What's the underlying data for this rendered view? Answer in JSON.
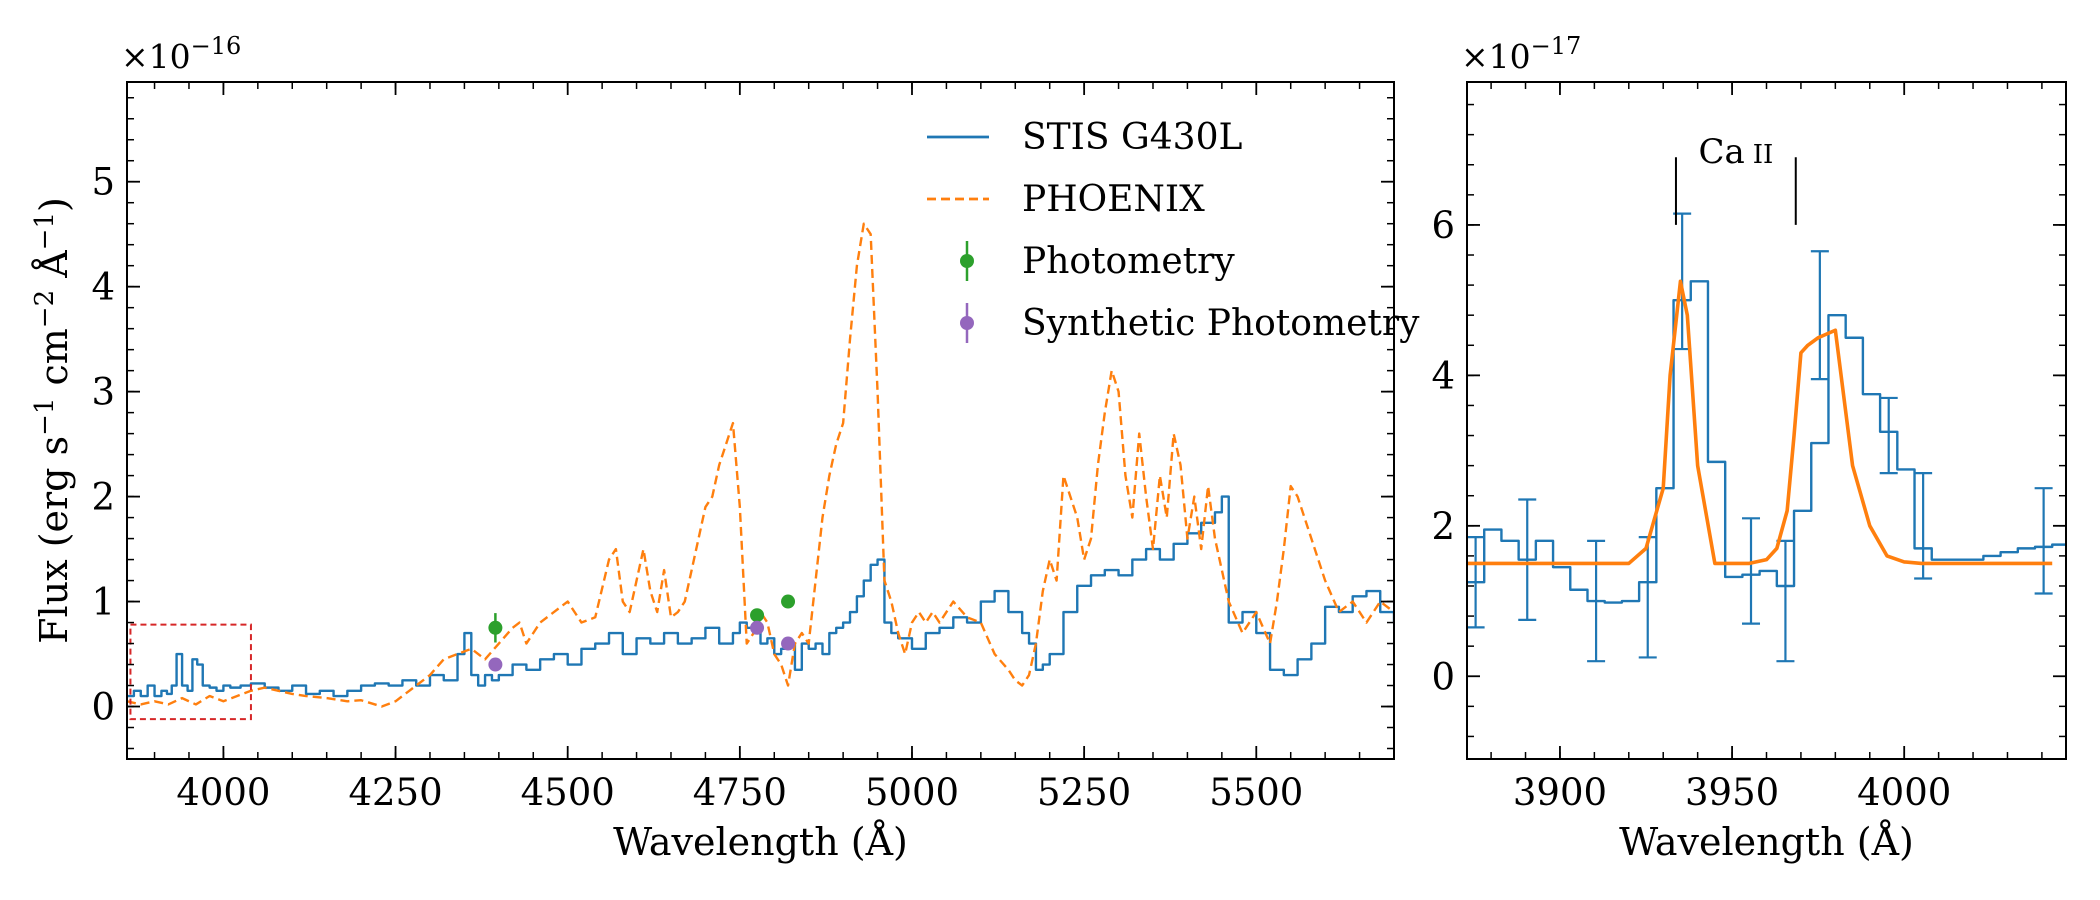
{
  "chart_data": [
    {
      "type": "line",
      "xlabel": "Wavelength (Å)",
      "ylabel_parts": [
        "Flux (erg s",
        "−1",
        " cm",
        "−2",
        " Å",
        "−1",
        ")"
      ],
      "y_scale_text": {
        "prefix": "×10",
        "exp": "−16"
      },
      "xlim": [
        3860,
        5700
      ],
      "ylim": [
        -0.5,
        5.95
      ],
      "xticks": [
        4000,
        4250,
        4500,
        4750,
        5000,
        5250,
        5500
      ],
      "xtick_labels": [
        "4000",
        "4250",
        "4500",
        "4750",
        "5000",
        "5250",
        "5500"
      ],
      "yticks": [
        0,
        1,
        2,
        3,
        4,
        5
      ],
      "ytick_labels": [
        "0",
        "1",
        "2",
        "3",
        "4",
        "5"
      ],
      "zoom_box": {
        "x": [
          3865,
          4040
        ],
        "y": [
          -0.12,
          0.78
        ],
        "color": "#d62728"
      },
      "legend": {
        "placement": "top-right",
        "entries": [
          {
            "label": "STIS G430L",
            "style": "line",
            "color": "#1f77b4"
          },
          {
            "label": "PHOENIX",
            "style": "dashed",
            "color": "#ff7f0e"
          },
          {
            "label": "Photometry",
            "style": "errorbar",
            "color": "#2ca02c"
          },
          {
            "label": "Synthetic Photometry",
            "style": "errorbar",
            "color": "#9467bd"
          }
        ]
      },
      "series": [
        {
          "name": "STIS G430L",
          "color": "#1f77b4",
          "style": "step",
          "x": [
            3860,
            3870,
            3880,
            3890,
            3900,
            3910,
            3918,
            3925,
            3932,
            3940,
            3948,
            3955,
            3962,
            3970,
            3980,
            3990,
            4000,
            4010,
            4025,
            4040,
            4060,
            4080,
            4100,
            4120,
            4140,
            4160,
            4180,
            4200,
            4220,
            4240,
            4260,
            4280,
            4300,
            4320,
            4340,
            4350,
            4360,
            4370,
            4380,
            4390,
            4400,
            4410,
            4420,
            4440,
            4460,
            4480,
            4500,
            4520,
            4540,
            4560,
            4580,
            4600,
            4620,
            4640,
            4660,
            4680,
            4700,
            4720,
            4740,
            4750,
            4760,
            4770,
            4780,
            4790,
            4800,
            4810,
            4820,
            4830,
            4840,
            4850,
            4860,
            4870,
            4880,
            4890,
            4900,
            4910,
            4920,
            4930,
            4940,
            4950,
            4960,
            4970,
            4980,
            5000,
            5020,
            5040,
            5060,
            5080,
            5100,
            5120,
            5140,
            5160,
            5170,
            5180,
            5190,
            5200,
            5220,
            5240,
            5260,
            5280,
            5300,
            5320,
            5340,
            5360,
            5380,
            5400,
            5420,
            5440,
            5450,
            5460,
            5480,
            5500,
            5520,
            5540,
            5560,
            5580,
            5600,
            5620,
            5640,
            5660,
            5680,
            5700
          ],
          "y": [
            0.1,
            0.15,
            0.1,
            0.2,
            0.1,
            0.15,
            0.12,
            0.2,
            0.5,
            0.2,
            0.15,
            0.45,
            0.4,
            0.2,
            0.18,
            0.15,
            0.2,
            0.18,
            0.2,
            0.22,
            0.18,
            0.15,
            0.2,
            0.12,
            0.15,
            0.1,
            0.15,
            0.2,
            0.22,
            0.2,
            0.25,
            0.2,
            0.3,
            0.25,
            0.5,
            0.7,
            0.3,
            0.2,
            0.3,
            0.25,
            0.3,
            0.3,
            0.4,
            0.35,
            0.45,
            0.5,
            0.4,
            0.55,
            0.6,
            0.7,
            0.5,
            0.65,
            0.6,
            0.7,
            0.6,
            0.65,
            0.75,
            0.6,
            0.7,
            0.8,
            0.75,
            0.7,
            0.6,
            0.65,
            0.5,
            0.55,
            0.6,
            0.35,
            0.6,
            0.55,
            0.6,
            0.5,
            0.7,
            0.75,
            0.8,
            0.9,
            1.05,
            1.2,
            1.35,
            1.4,
            0.8,
            0.7,
            0.65,
            0.55,
            0.7,
            0.75,
            0.85,
            0.8,
            1.0,
            1.1,
            0.9,
            0.7,
            0.6,
            0.35,
            0.4,
            0.5,
            0.9,
            1.15,
            1.25,
            1.3,
            1.25,
            1.4,
            1.5,
            1.4,
            1.55,
            1.65,
            1.75,
            1.85,
            2.0,
            0.8,
            0.9,
            0.7,
            0.35,
            0.3,
            0.45,
            0.6,
            0.95,
            0.9,
            1.05,
            1.1,
            0.9,
            0.8
          ]
        },
        {
          "name": "PHOENIX",
          "color": "#ff7f0e",
          "style": "dashed",
          "x": [
            3860,
            3880,
            3900,
            3920,
            3940,
            3960,
            3980,
            4000,
            4020,
            4040,
            4060,
            4080,
            4100,
            4120,
            4150,
            4180,
            4200,
            4230,
            4250,
            4270,
            4300,
            4320,
            4340,
            4360,
            4380,
            4400,
            4420,
            4430,
            4440,
            4460,
            4480,
            4500,
            4520,
            4540,
            4560,
            4570,
            4580,
            4590,
            4600,
            4610,
            4620,
            4630,
            4640,
            4650,
            4660,
            4670,
            4680,
            4690,
            4700,
            4710,
            4720,
            4730,
            4740,
            4750,
            4760,
            4770,
            4780,
            4790,
            4800,
            4810,
            4820,
            4830,
            4840,
            4850,
            4860,
            4870,
            4880,
            4890,
            4900,
            4910,
            4920,
            4930,
            4940,
            4950,
            4960,
            4970,
            4980,
            4990,
            5000,
            5010,
            5020,
            5030,
            5040,
            5050,
            5060,
            5080,
            5100,
            5120,
            5140,
            5150,
            5160,
            5170,
            5180,
            5190,
            5200,
            5210,
            5220,
            5230,
            5240,
            5250,
            5260,
            5270,
            5280,
            5290,
            5300,
            5310,
            5320,
            5330,
            5340,
            5350,
            5360,
            5370,
            5380,
            5390,
            5400,
            5410,
            5420,
            5430,
            5440,
            5450,
            5460,
            5480,
            5500,
            5520,
            5530,
            5540,
            5550,
            5560,
            5580,
            5600,
            5620,
            5640,
            5660,
            5680,
            5700
          ],
          "y": [
            0.05,
            0.02,
            0.05,
            0.02,
            0.08,
            0.02,
            0.1,
            0.05,
            0.1,
            0.15,
            0.18,
            0.15,
            0.12,
            0.1,
            0.08,
            0.05,
            0.06,
            0.0,
            0.05,
            0.15,
            0.3,
            0.45,
            0.5,
            0.55,
            0.45,
            0.6,
            0.75,
            0.8,
            0.6,
            0.8,
            0.9,
            1.0,
            0.8,
            0.85,
            1.4,
            1.5,
            1.0,
            0.9,
            1.2,
            1.5,
            1.1,
            0.9,
            1.3,
            0.85,
            0.9,
            1.0,
            1.3,
            1.6,
            1.9,
            2.0,
            2.3,
            2.5,
            2.7,
            1.9,
            0.6,
            0.7,
            0.9,
            0.8,
            0.5,
            0.4,
            0.2,
            0.6,
            0.7,
            0.6,
            1.2,
            1.8,
            2.2,
            2.5,
            2.7,
            3.5,
            4.2,
            4.6,
            4.5,
            3.0,
            1.2,
            1.0,
            0.7,
            0.5,
            0.8,
            0.9,
            0.8,
            0.9,
            0.8,
            0.9,
            1.0,
            0.85,
            0.8,
            0.5,
            0.35,
            0.25,
            0.2,
            0.3,
            0.6,
            1.1,
            1.4,
            1.2,
            2.2,
            2.0,
            1.8,
            1.4,
            1.6,
            2.3,
            2.8,
            3.2,
            3.0,
            2.2,
            1.8,
            2.6,
            2.0,
            1.5,
            2.2,
            1.8,
            2.6,
            2.3,
            1.6,
            2.0,
            1.5,
            2.1,
            1.6,
            1.3,
            1.0,
            0.7,
            0.9,
            0.6,
            1.0,
            1.5,
            2.1,
            2.0,
            1.6,
            1.2,
            0.9,
            1.0,
            0.8,
            1.0,
            0.9
          ]
        }
      ],
      "points": [
        {
          "series": "Photometry",
          "color": "#2ca02c",
          "x": [
            4395,
            4775,
            4820
          ],
          "y": [
            0.75,
            0.87,
            1.0
          ],
          "yerr": [
            0.14,
            0.06,
            0.05
          ]
        },
        {
          "series": "Synthetic Photometry",
          "color": "#9467bd",
          "x": [
            4395,
            4775,
            4820
          ],
          "y": [
            0.4,
            0.75,
            0.6
          ],
          "yerr": [
            0.02,
            0.02,
            0.02
          ]
        }
      ]
    },
    {
      "type": "line",
      "xlabel": "Wavelength (Å)",
      "y_scale_text": {
        "prefix": "×10",
        "exp": "−17"
      },
      "xlim": [
        3873,
        4047
      ],
      "ylim": [
        -1.1,
        7.9
      ],
      "xticks": [
        3900,
        3950,
        4000
      ],
      "xtick_labels": [
        "3900",
        "3950",
        "4000"
      ],
      "yticks": [
        0,
        2,
        4,
        6
      ],
      "ytick_labels": [
        "0",
        "2",
        "4",
        "6"
      ],
      "annotation": {
        "label_main": "Ca",
        "label_sub": "II",
        "lines_x": [
          3933.7,
          3968.5
        ],
        "lines_y": [
          6.0,
          6.9
        ]
      },
      "series": [
        {
          "name": "STIS G430L",
          "color": "#1f77b4",
          "style": "step",
          "x": [
            3873,
            3878,
            3883,
            3888,
            3893,
            3898,
            3903,
            3908,
            3913,
            3918,
            3923,
            3928,
            3933,
            3938,
            3943,
            3948,
            3953,
            3958,
            3963,
            3968,
            3973,
            3978,
            3983,
            3988,
            3993,
            3998,
            4003,
            4008,
            4013,
            4018,
            4023,
            4028,
            4033,
            4038,
            4043,
            4047
          ],
          "y": [
            1.25,
            1.95,
            1.8,
            1.55,
            1.8,
            1.45,
            1.15,
            1.0,
            0.98,
            1.0,
            1.25,
            2.5,
            5.0,
            5.25,
            2.85,
            1.32,
            1.35,
            1.4,
            1.2,
            2.2,
            3.1,
            4.8,
            4.5,
            3.75,
            3.25,
            2.75,
            1.7,
            1.55,
            1.55,
            1.55,
            1.6,
            1.65,
            1.7,
            1.72,
            1.75,
            1.75
          ],
          "yerr": [
            {
              "x": 3875.5,
              "y": 1.25,
              "err": 0.6
            },
            {
              "x": 3890.5,
              "y": 1.55,
              "err": 0.8
            },
            {
              "x": 3910.5,
              "y": 1.0,
              "err": 0.8
            },
            {
              "x": 3925.5,
              "y": 1.05,
              "err": 0.8
            },
            {
              "x": 3935.5,
              "y": 5.25,
              "err": 0.9
            },
            {
              "x": 3955.5,
              "y": 1.4,
              "err": 0.7
            },
            {
              "x": 3965.5,
              "y": 1.0,
              "err": 0.8
            },
            {
              "x": 3975.5,
              "y": 4.8,
              "err": 0.85
            },
            {
              "x": 3995.5,
              "y": 3.2,
              "err": 0.5
            },
            {
              "x": 4005.5,
              "y": 2.0,
              "err": 0.7
            },
            {
              "x": 4040.5,
              "y": 1.8,
              "err": 0.7
            }
          ]
        },
        {
          "name": "PHOENIX",
          "color": "#ff7f0e",
          "style": "solid",
          "x": [
            3873,
            3920,
            3925,
            3930,
            3932,
            3935,
            3937,
            3940,
            3945,
            3950,
            3955,
            3960,
            3963,
            3966,
            3968,
            3970,
            3972,
            3975,
            3980,
            3985,
            3990,
            3995,
            4000,
            4005,
            4043
          ],
          "y": [
            1.5,
            1.5,
            1.7,
            2.5,
            4.0,
            5.25,
            4.8,
            2.8,
            1.5,
            1.5,
            1.5,
            1.55,
            1.7,
            2.2,
            3.2,
            4.3,
            4.4,
            4.5,
            4.6,
            2.8,
            2.0,
            1.6,
            1.52,
            1.5,
            1.5
          ]
        }
      ]
    }
  ]
}
